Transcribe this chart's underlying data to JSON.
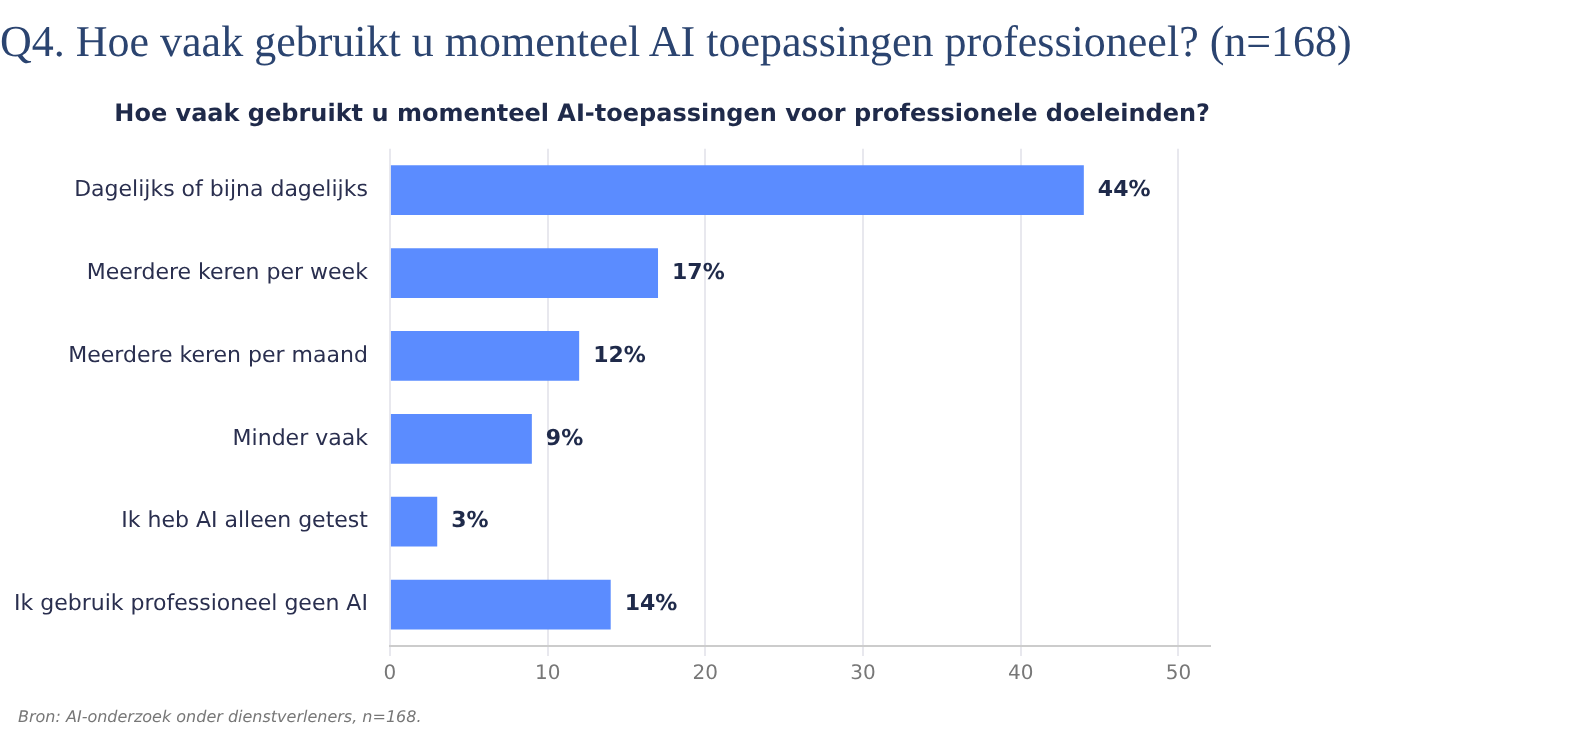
{
  "chart_data": {
    "type": "bar",
    "orientation": "horizontal",
    "title": "Q4. Hoe vaak gebruikt u momenteel AI toepassingen professioneel? (n=168)",
    "subtitle": "Hoe vaak gebruikt u momenteel AI-toepassingen voor professionele doeleinden?",
    "categories": [
      "Dagelijks of bijna dagelijks",
      "Meerdere keren per week",
      "Meerdere keren per maand",
      "Minder vaak",
      "Ik heb AI alleen getest",
      "Ik gebruik professioneel geen AI"
    ],
    "values": [
      44,
      17,
      12,
      9,
      3,
      14
    ],
    "value_labels": [
      "44%",
      "17%",
      "12%",
      "9%",
      "3%",
      "14%"
    ],
    "color": "#5b8cff",
    "xlim": [
      0,
      52
    ],
    "xticks": [
      0,
      10,
      20,
      30,
      40,
      50
    ],
    "grid": "x",
    "legend": false,
    "annotations": [
      "Bron: AI-onderzoek onder dienstverleners, n=168."
    ]
  }
}
